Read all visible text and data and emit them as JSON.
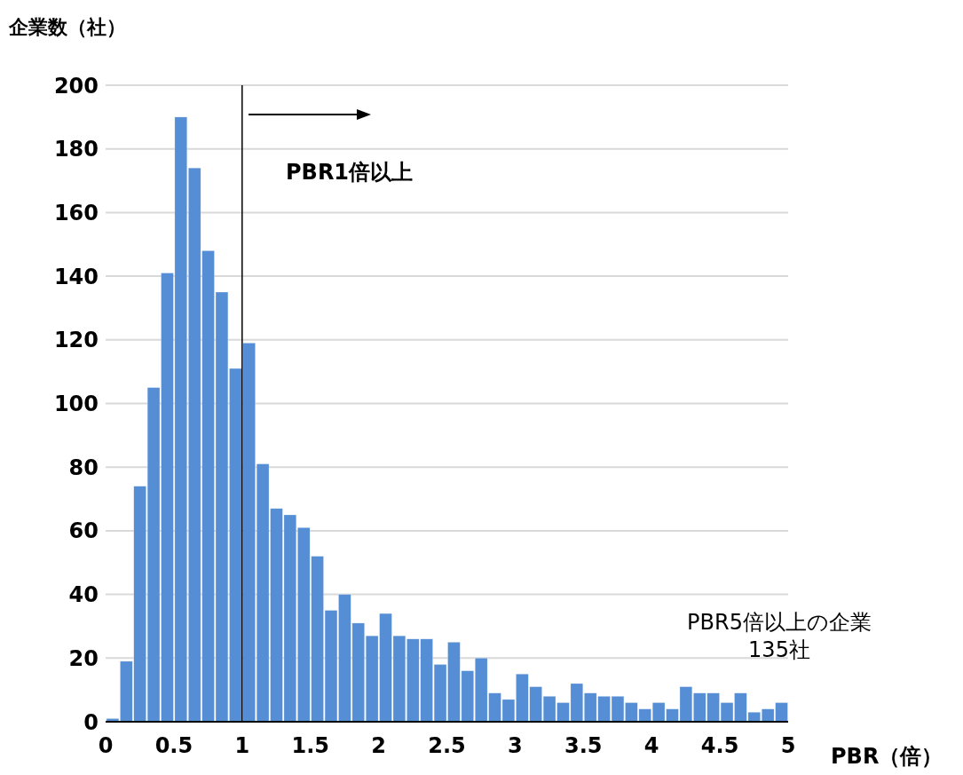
{
  "chart_data": {
    "type": "histogram",
    "ylabel": "企業数（社）",
    "xlabel": "PBR（倍）",
    "bins": [
      0,
      0.1,
      0.2,
      0.3,
      0.4,
      0.5,
      0.6,
      0.7,
      0.8,
      0.9,
      1,
      1.1,
      1.2,
      1.3,
      1.4,
      1.5,
      1.6,
      1.7,
      1.8,
      1.9,
      2,
      2.1,
      2.2,
      2.3,
      2.4,
      2.5,
      2.6,
      2.7,
      2.8,
      2.9,
      3,
      3.1,
      3.2,
      3.3,
      3.4,
      3.5,
      3.6,
      3.7,
      3.8,
      3.9,
      4,
      4.1,
      4.2,
      4.3,
      4.4,
      4.5,
      4.6,
      4.7,
      4.8,
      4.9,
      5
    ],
    "values": [
      1,
      19,
      74,
      105,
      141,
      190,
      174,
      148,
      135,
      111,
      119,
      81,
      67,
      65,
      61,
      52,
      35,
      40,
      31,
      27,
      34,
      27,
      26,
      26,
      18,
      25,
      16,
      20,
      9,
      7,
      15,
      11,
      8,
      6,
      12,
      9,
      8,
      8,
      6,
      4,
      6,
      4,
      11,
      9,
      9,
      6,
      9,
      3,
      4,
      6
    ],
    "color": "#558ed5",
    "xlim": [
      0,
      5
    ],
    "xticks": [
      0,
      0.5,
      1,
      1.5,
      2,
      2.5,
      3,
      3.5,
      4,
      4.5,
      5
    ],
    "ylim": [
      0,
      200
    ],
    "yticks": [
      0,
      20,
      40,
      60,
      80,
      100,
      120,
      140,
      160,
      180,
      200
    ],
    "grid": "y",
    "legend": false,
    "ref_lines": [
      {
        "axis": "x",
        "value": 1,
        "color": "#000000"
      }
    ],
    "annotations": [
      "PBR1倍以上",
      "PBR5倍以上の企業\n135社"
    ]
  }
}
